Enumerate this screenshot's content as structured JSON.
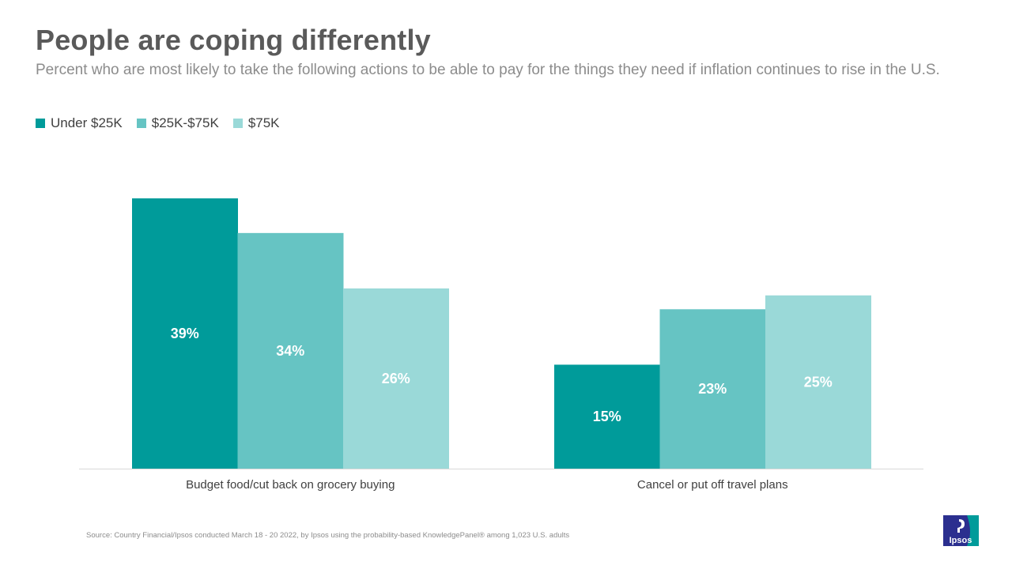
{
  "title": "People are coping differently",
  "subtitle": "Percent who are most likely to take the following actions to be able to pay for the things they need if inflation continues to rise in the U.S.",
  "colors": {
    "under_25k": "#009b9a",
    "25k_75k": "#66c4c3",
    "75k": "#9ad9d8",
    "axis": "#d9d9d9",
    "title": "#5a5a5a"
  },
  "chart_data": {
    "type": "bar",
    "title": "People are coping differently",
    "xlabel": "",
    "ylabel": "",
    "ylim": [
      0,
      40
    ],
    "grid": false,
    "legend_position": "top-left",
    "categories": [
      "Budget food/cut back on grocery buying",
      "Cancel or put off travel plans"
    ],
    "series": [
      {
        "name": "Under $25K",
        "values": [
          39,
          15
        ],
        "labels": [
          "39%",
          "15%"
        ]
      },
      {
        "name": "$25K-$75K",
        "values": [
          34,
          23
        ],
        "labels": [
          "34%",
          "23%"
        ]
      },
      {
        "name": "$75K",
        "values": [
          26,
          25
        ],
        "labels": [
          "26%",
          "25%"
        ]
      }
    ]
  },
  "source": "Source: Country Financial/Ipsos conducted March 18 - 20 2022, by Ipsos using the probability-based KnowledgePanel® among 1,023 U.S. adults",
  "logo": {
    "text": "Ipsos",
    "icon": "ipsos-logo-icon"
  }
}
